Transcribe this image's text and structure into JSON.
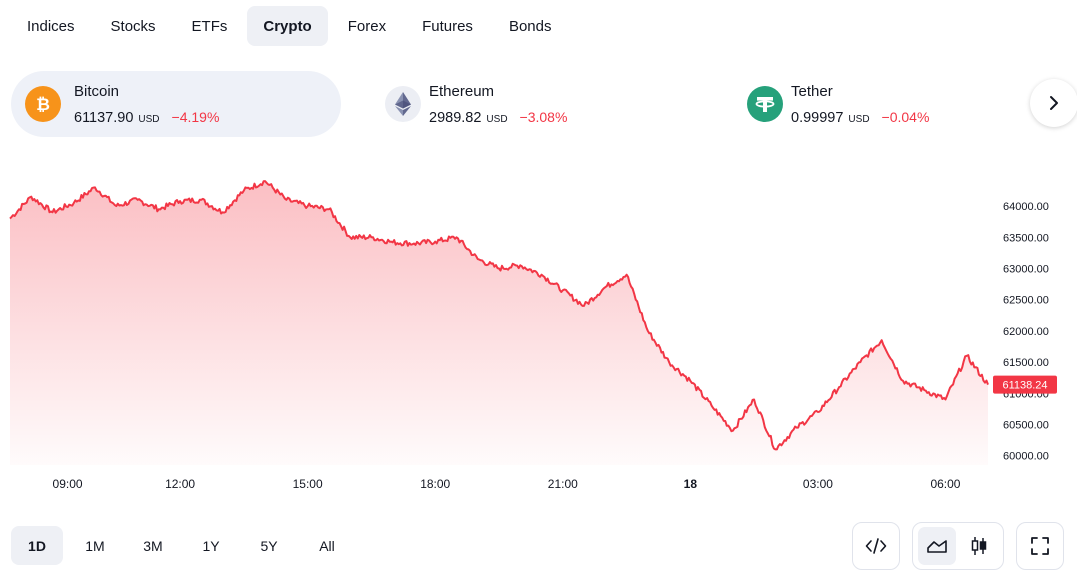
{
  "tabs": [
    {
      "label": "Indices",
      "active": false
    },
    {
      "label": "Stocks",
      "active": false
    },
    {
      "label": "ETFs",
      "active": false
    },
    {
      "label": "Crypto",
      "active": true
    },
    {
      "label": "Forex",
      "active": false
    },
    {
      "label": "Futures",
      "active": false
    },
    {
      "label": "Bonds",
      "active": false
    }
  ],
  "tickers": [
    {
      "name": "Bitcoin",
      "price": "61137.90",
      "currency": "USD",
      "change": "−4.19%",
      "icon": "bitcoin-icon",
      "color": "#f7931a"
    },
    {
      "name": "Ethereum",
      "price": "2989.82",
      "currency": "USD",
      "change": "−3.08%",
      "icon": "ethereum-icon",
      "color": "#627eea"
    },
    {
      "name": "Tether",
      "price": "0.99997",
      "currency": "USD",
      "change": "−0.04%",
      "icon": "tether-icon",
      "color": "#26a17b"
    }
  ],
  "colors": {
    "line": "#f23645",
    "down": "#f23645",
    "accent": "#131722"
  },
  "chart_data": {
    "type": "area",
    "y_ticks": [
      "64000.00",
      "63500.00",
      "63000.00",
      "62500.00",
      "62000.00",
      "61500.00",
      "61000.00",
      "60500.00",
      "60000.00"
    ],
    "ylim": [
      59850,
      64450
    ],
    "x_ticks": [
      "09:00",
      "12:00",
      "15:00",
      "18:00",
      "21:00",
      "18",
      "03:00",
      "06:00"
    ],
    "last_price_label": "61138.24",
    "series": [
      {
        "x": [
          "08:00",
          "08:30",
          "09:00",
          "09:30",
          "10:00",
          "10:30",
          "11:00",
          "11:30",
          "12:00",
          "12:30",
          "13:00",
          "13:30",
          "14:00",
          "14:30",
          "15:00",
          "15:30",
          "16:00",
          "16:30",
          "17:00",
          "17:30",
          "18:00",
          "18:30",
          "19:00",
          "19:30",
          "20:00",
          "20:30",
          "21:00",
          "21:30",
          "22:00",
          "22:30",
          "23:00",
          "23:30",
          "00:00",
          "00:30",
          "01:00",
          "01:30",
          "02:00",
          "02:30",
          "03:00",
          "03:30",
          "04:00",
          "04:30",
          "05:00",
          "05:30",
          "06:00",
          "06:30",
          "07:00"
        ],
        "values": [
          63800,
          64150,
          63900,
          64050,
          64300,
          64000,
          64100,
          63950,
          64080,
          64100,
          63900,
          64250,
          64400,
          64100,
          64000,
          63950,
          63500,
          63500,
          63420,
          63400,
          63430,
          63500,
          63150,
          63000,
          63050,
          62900,
          62650,
          62400,
          62700,
          62900,
          62000,
          61500,
          61200,
          60800,
          60400,
          60900,
          60100,
          60450,
          60700,
          61100,
          61500,
          61850,
          61200,
          61050,
          60900,
          61600,
          61138
        ]
      }
    ]
  },
  "range_buttons": [
    {
      "label": "1D",
      "active": true
    },
    {
      "label": "1M",
      "active": false
    },
    {
      "label": "3M",
      "active": false
    },
    {
      "label": "1Y",
      "active": false
    },
    {
      "label": "5Y",
      "active": false
    },
    {
      "label": "All",
      "active": false
    }
  ],
  "tools": {
    "embed": "code-icon",
    "area": "area-chart-icon",
    "candles": "candlestick-icon",
    "fullscreen": "fullscreen-icon",
    "next": "chevron-right-icon"
  }
}
